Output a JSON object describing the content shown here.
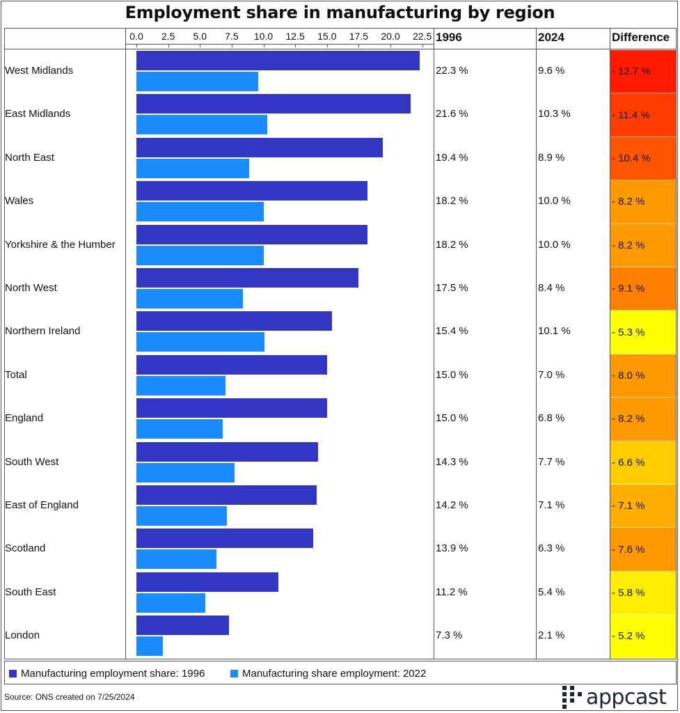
{
  "title": "Employment share in manufacturing by region",
  "columns": {
    "c1996": "1996",
    "c2024": "2024",
    "diff": "Difference"
  },
  "colors": {
    "series1996": "#3236c2",
    "series2022": "#1a8cff"
  },
  "chart_data": {
    "type": "bar",
    "orientation": "horizontal",
    "title": "Employment share in manufacturing by region",
    "xlim": [
      0,
      22.5
    ],
    "ticks": [
      "0.0",
      "2.5",
      "5.0",
      "7.5",
      "10.0",
      "12.5",
      "15.0",
      "17.5",
      "20.0",
      "22.5"
    ],
    "categories": [
      "West Midlands",
      "East Midlands",
      "North East",
      "Wales",
      "Yorkshire & the Humber",
      "North West",
      "Northern Ireland",
      "Total",
      "England",
      "South West",
      "East of England",
      "Scotland",
      "South East",
      "London"
    ],
    "series": [
      {
        "name": "Manufacturing employment share: 1996",
        "values": [
          22.3,
          21.6,
          19.4,
          18.2,
          18.2,
          17.5,
          15.4,
          15.0,
          15.0,
          14.3,
          14.2,
          13.9,
          11.2,
          7.3
        ]
      },
      {
        "name": "Manufacturing share employment: 2022",
        "values": [
          9.6,
          10.3,
          8.9,
          10.0,
          10.0,
          8.4,
          10.1,
          7.0,
          6.8,
          7.7,
          7.1,
          6.3,
          5.4,
          2.1
        ]
      }
    ],
    "table": {
      "v1996": [
        "22.3 %",
        "21.6 %",
        "19.4 %",
        "18.2 %",
        "18.2 %",
        "17.5 %",
        "15.4 %",
        "15.0 %",
        "15.0 %",
        "14.3 %",
        "14.2 %",
        "13.9 %",
        "11.2 %",
        "7.3 %"
      ],
      "v2024": [
        "9.6 %",
        "10.3 %",
        "8.9 %",
        "10.0 %",
        "10.0 %",
        "8.4 %",
        "10.1 %",
        "7.0 %",
        "6.8 %",
        "7.7 %",
        "7.1 %",
        "6.3 %",
        "5.4 %",
        "2.1 %"
      ],
      "diff": [
        "- 12.7 %",
        "- 11.4 %",
        "- 10.4 %",
        "- 8.2 %",
        "- 8.2 %",
        "- 9.1 %",
        "- 5.3 %",
        "- 8.0 %",
        "- 8.2 %",
        "- 6.6 %",
        "- 7.1 %",
        "- 7.6 %",
        "- 5.8 %",
        "- 5.2 %"
      ],
      "diff_colors": [
        "#ff1a00",
        "#ff3d00",
        "#ff5500",
        "#ff9900",
        "#ff9900",
        "#ff8000",
        "#ffff00",
        "#ff9900",
        "#ff9900",
        "#ffcc00",
        "#ffad00",
        "#ff9900",
        "#ffee00",
        "#ffff00"
      ]
    }
  },
  "legend": {
    "item1": "Manufacturing employment share: 1996",
    "item2": "Manufacturing share employment: 2022"
  },
  "source": "Source: ONS created on 7/25/2024",
  "logo": "appcast"
}
